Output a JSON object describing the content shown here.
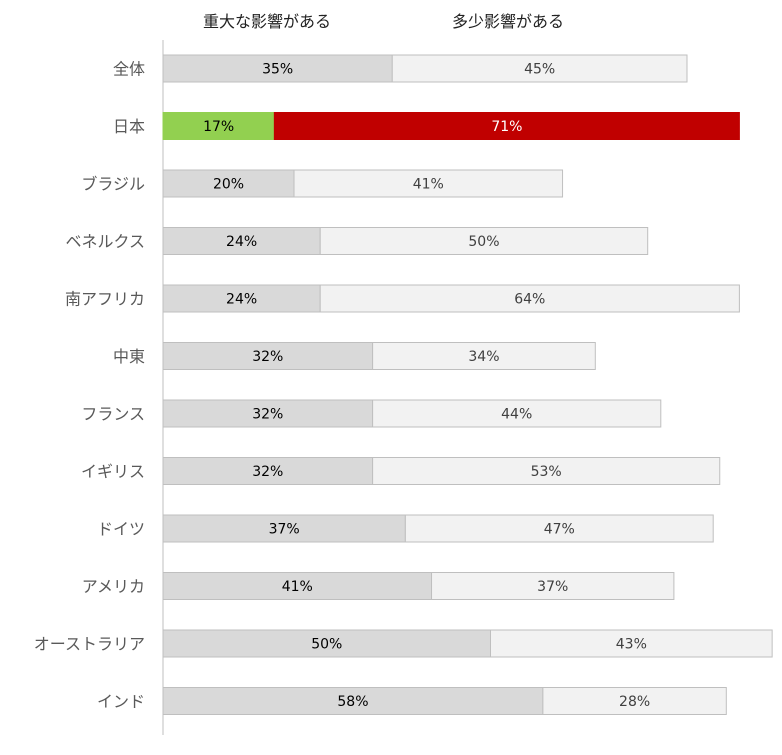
{
  "chart_data": {
    "type": "bar",
    "orientation": "horizontal",
    "stacked": true,
    "title": "",
    "xlabel": "",
    "ylabel": "",
    "xlim": [
      0,
      100
    ],
    "grid": false,
    "legend_position": "top",
    "categories": [
      "全体",
      "日本",
      "ブラジル",
      "ベネルクス",
      "南アフリカ",
      "中東",
      "フランス",
      "イギリス",
      "ドイツ",
      "アメリカ",
      "オーストラリア",
      "インド"
    ],
    "series": [
      {
        "name": "重大な影響がある",
        "values": [
          35,
          17,
          20,
          24,
          24,
          32,
          32,
          32,
          37,
          41,
          50,
          58
        ],
        "labels": [
          "35%",
          "17%",
          "20%",
          "24%",
          "24%",
          "32%",
          "32%",
          "32%",
          "37%",
          "41%",
          "50%",
          "58%"
        ]
      },
      {
        "name": "多少影響がある",
        "values": [
          45,
          71,
          41,
          50,
          64,
          34,
          44,
          53,
          47,
          37,
          43,
          28
        ],
        "labels": [
          "45%",
          "71%",
          "41%",
          "50%",
          "64%",
          "34%",
          "44%",
          "53%",
          "47%",
          "37%",
          "43%",
          "28%"
        ]
      }
    ],
    "colors": {
      "series1": "#d9d9d9",
      "series1_border": "#bfbfbf",
      "series2": "#f2f2f2",
      "series2_border": "#bfbfbf",
      "highlight_series1": "#92d050",
      "highlight_series2": "#c00000",
      "axis": "#bfbfbf",
      "label_dark": "#000000",
      "label_light": "#404040",
      "label_on_red": "#ffffff"
    },
    "highlight_category": "日本"
  }
}
